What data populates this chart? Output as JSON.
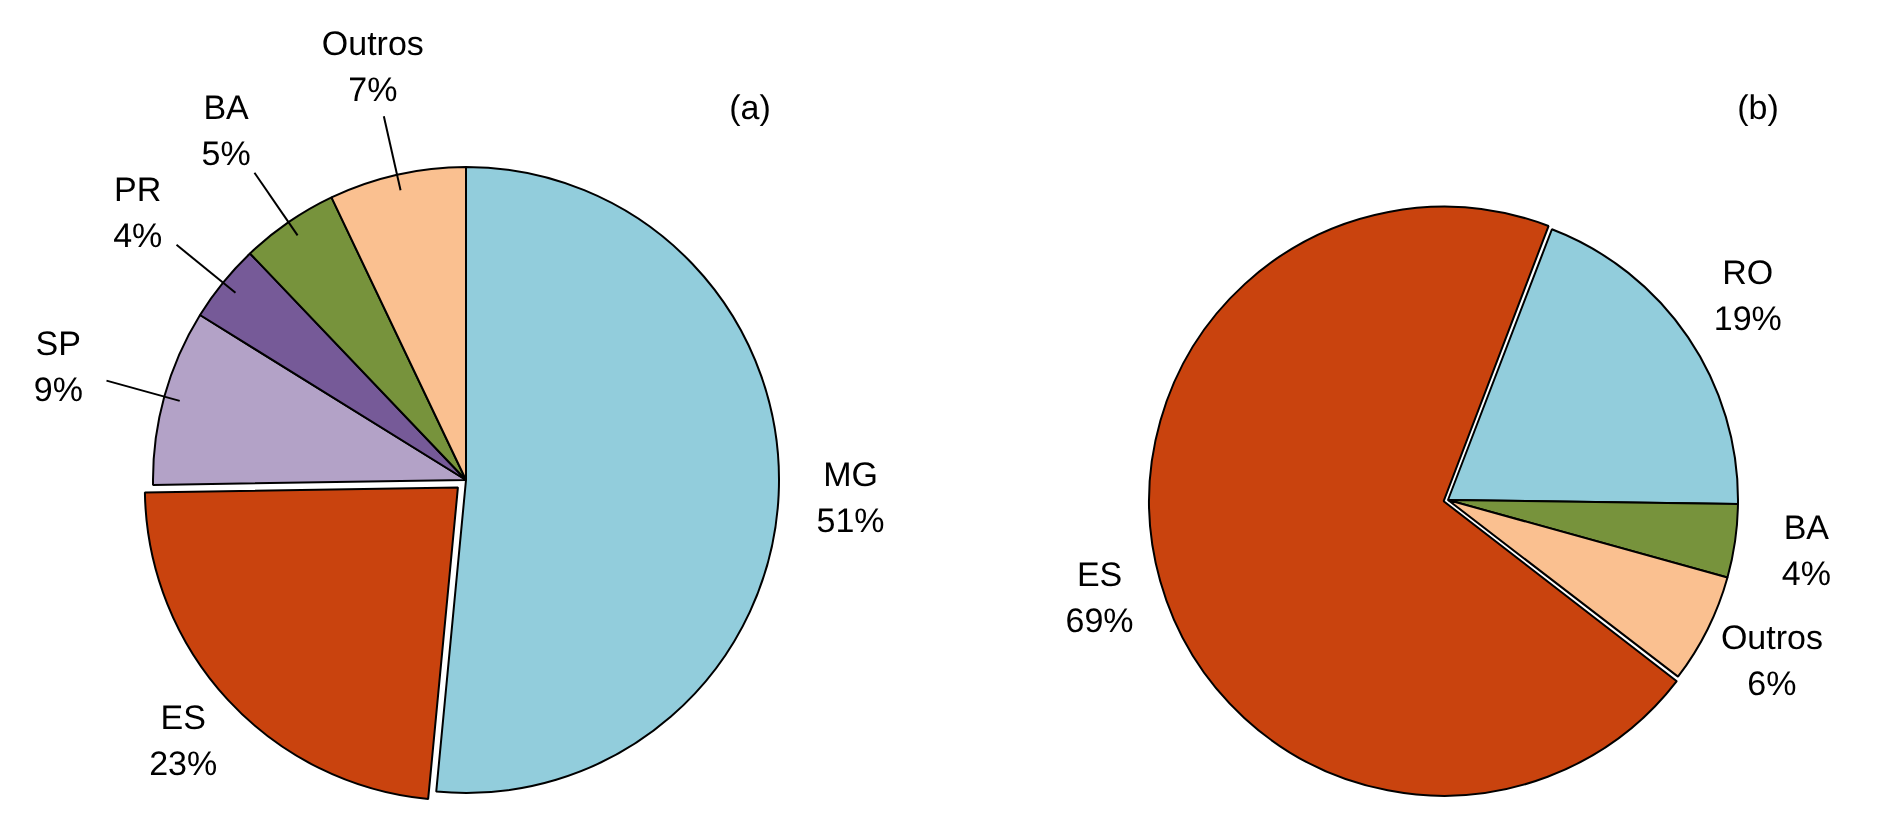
{
  "chart_data": [
    {
      "type": "pie",
      "title": "(a)",
      "categories": [
        "MG",
        "ES",
        "SP",
        "PR",
        "BA",
        "Outros"
      ],
      "values": [
        51,
        23,
        9,
        4,
        5,
        7
      ],
      "value_labels": [
        "51%",
        "23%",
        "9%",
        "4%",
        "5%",
        "7%"
      ],
      "colors": [
        "#92cddc",
        "#c9430e",
        "#b3a2c7",
        "#765a98",
        "#77933c",
        "#fac090"
      ],
      "legend": false
    },
    {
      "type": "pie",
      "title": "(b)",
      "categories": [
        "RO",
        "BA",
        "Outros",
        "ES"
      ],
      "values": [
        19,
        4,
        6,
        69
      ],
      "value_labels": [
        "19%",
        "4%",
        "6%",
        "69%"
      ],
      "colors": [
        "#92cddc",
        "#77933c",
        "#fac090",
        "#c9430e"
      ],
      "legend": false
    }
  ]
}
